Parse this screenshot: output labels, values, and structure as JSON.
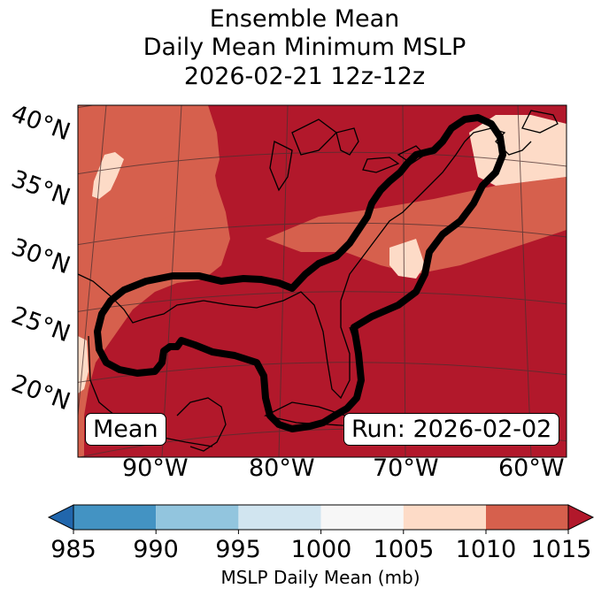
{
  "title": {
    "line1": "Ensemble Mean",
    "line2": "Daily Mean Minimum MSLP",
    "line3": "2026-02-21 12z-12z"
  },
  "map": {
    "lat_labels": [
      "40°N",
      "35°N",
      "30°N",
      "25°N",
      "20°N"
    ],
    "lon_labels": [
      "90°W",
      "80°W",
      "70°W",
      "60°W"
    ],
    "mean_label": "Mean",
    "run_label": "Run: 2026-02-02"
  },
  "colorbar": {
    "ticks": [
      "985",
      "990",
      "995",
      "1000",
      "1005",
      "1010",
      "1015"
    ],
    "label": "MSLP Daily Mean (mb)",
    "colors": [
      "#2166ac",
      "#4393c3",
      "#92c5de",
      "#d1e5f0",
      "#f7f7f7",
      "#fddbc7",
      "#d6604d",
      "#b2182b"
    ]
  }
}
